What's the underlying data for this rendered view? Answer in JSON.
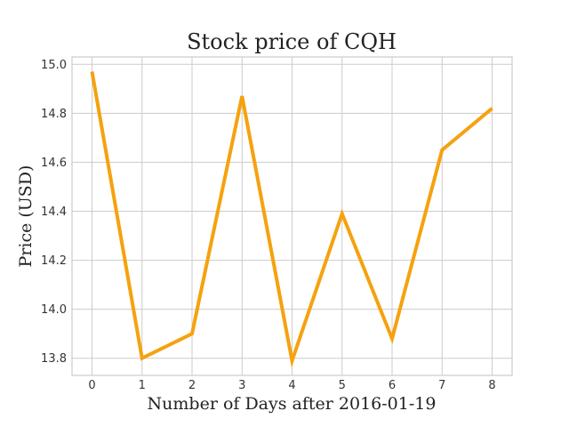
{
  "chart_data": {
    "type": "line",
    "title": "Stock price of CQH",
    "xlabel": "Number of Days after 2016-01-19",
    "ylabel": "Price (USD)",
    "x": [
      0,
      1,
      2,
      3,
      4,
      5,
      6,
      7,
      8
    ],
    "series": [
      {
        "values": [
          14.97,
          13.8,
          13.9,
          14.87,
          13.79,
          14.39,
          13.88,
          14.65,
          14.82
        ]
      }
    ],
    "xticks": [
      "0",
      "1",
      "2",
      "3",
      "4",
      "5",
      "6",
      "7",
      "8"
    ],
    "yticks": [
      "13.8",
      "14.0",
      "14.2",
      "14.4",
      "14.6",
      "14.8",
      "15.0"
    ],
    "xlim": [
      -0.4,
      8.4
    ],
    "ylim": [
      13.73,
      15.03
    ],
    "grid": true,
    "line_color": "#f5a20f"
  }
}
